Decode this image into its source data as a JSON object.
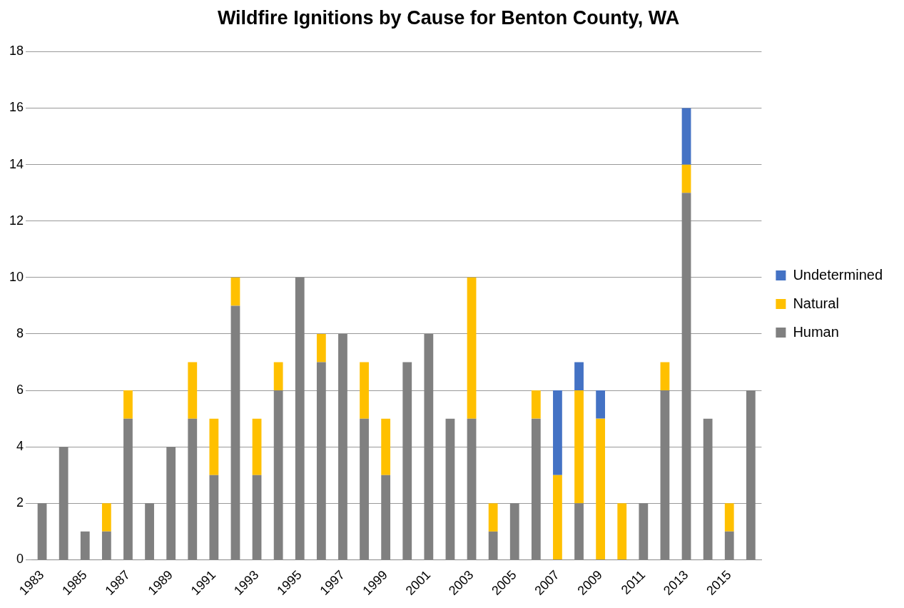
{
  "chart_data": {
    "type": "bar",
    "title": "Wildfire Ignitions by Cause for Benton County, WA",
    "stacked": true,
    "grid": "y",
    "legend": "right",
    "categories": [
      "1983",
      null,
      "1985",
      null,
      "1987",
      null,
      "1989",
      null,
      "1991",
      null,
      "1993",
      null,
      "1995",
      null,
      "1997",
      null,
      "1999",
      null,
      "2001",
      null,
      "2003",
      null,
      "2005",
      null,
      "2007",
      null,
      "2009",
      null,
      "2011",
      null,
      "2013",
      null,
      "2015",
      null
    ],
    "ylim": [
      0,
      18
    ],
    "yticks": [
      0,
      2,
      4,
      6,
      8,
      10,
      12,
      14,
      16,
      18
    ],
    "series": [
      {
        "name": "Human",
        "color": "#808080",
        "values": [
          2,
          4,
          1,
          1,
          5,
          2,
          4,
          5,
          3,
          9,
          3,
          6,
          10,
          7,
          8,
          5,
          3,
          7,
          8,
          5,
          5,
          1,
          2,
          5,
          0,
          2,
          0,
          0,
          2,
          6,
          13,
          5,
          1,
          6
        ]
      },
      {
        "name": "Natural",
        "color": "#ffc000",
        "values": [
          0,
          0,
          0,
          1,
          1,
          0,
          0,
          2,
          2,
          1,
          2,
          1,
          0,
          1,
          0,
          2,
          2,
          0,
          0,
          0,
          5,
          1,
          0,
          1,
          3,
          4,
          5,
          2,
          0,
          1,
          1,
          0,
          1,
          0
        ]
      },
      {
        "name": "Undetermined",
        "color": "#4472c4",
        "values": [
          0,
          0,
          0,
          0,
          0,
          0,
          0,
          0,
          0,
          0,
          0,
          0,
          0,
          0,
          0,
          0,
          0,
          0,
          0,
          0,
          0,
          0,
          0,
          0,
          3,
          1,
          1,
          0,
          0,
          0,
          2,
          0,
          0,
          0
        ]
      }
    ]
  }
}
